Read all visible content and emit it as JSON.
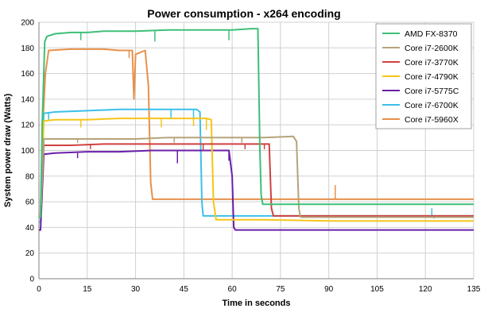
{
  "chart_data": {
    "type": "line",
    "title": "Power consumption - x264 encoding",
    "xlabel": "Time in seconds",
    "ylabel": "System power draw (Watts)",
    "xlim": [
      0,
      135
    ],
    "ylim": [
      0,
      200
    ],
    "xticks": [
      0,
      15,
      30,
      45,
      60,
      75,
      90,
      105,
      120,
      135
    ],
    "yticks": [
      0,
      20,
      40,
      60,
      80,
      100,
      120,
      140,
      160,
      180,
      200
    ],
    "grid": true,
    "legend_position": "top-right",
    "series": [
      {
        "name": "AMD FX-8370",
        "color": "#3dbf78",
        "points": [
          [
            0,
            48
          ],
          [
            0.5,
            48
          ],
          [
            1,
            120
          ],
          [
            1.8,
            185
          ],
          [
            2.5,
            189
          ],
          [
            5,
            191
          ],
          [
            10,
            192
          ],
          [
            15,
            192
          ],
          [
            20,
            193
          ],
          [
            30,
            193
          ],
          [
            40,
            194
          ],
          [
            50,
            194
          ],
          [
            60,
            194
          ],
          [
            66,
            195
          ],
          [
            68,
            195
          ],
          [
            68.6,
            100
          ],
          [
            69,
            65
          ],
          [
            69.5,
            58
          ],
          [
            80,
            58
          ],
          [
            100,
            58
          ],
          [
            120,
            58
          ],
          [
            135,
            58
          ]
        ],
        "spikes": [
          [
            13,
            186
          ],
          [
            36,
            185
          ],
          [
            59,
            186
          ],
          [
            68,
            186
          ]
        ]
      },
      {
        "name": "Core i7-2600K",
        "color": "#b5a37a",
        "points": [
          [
            0,
            48
          ],
          [
            0.5,
            48
          ],
          [
            1.5,
            109
          ],
          [
            10,
            109
          ],
          [
            20,
            109
          ],
          [
            30,
            109
          ],
          [
            40,
            110
          ],
          [
            50,
            110
          ],
          [
            60,
            110
          ],
          [
            70,
            110
          ],
          [
            79,
            111
          ],
          [
            80,
            107
          ],
          [
            80.7,
            55
          ],
          [
            81.2,
            48
          ],
          [
            100,
            48
          ],
          [
            120,
            48
          ],
          [
            135,
            48
          ]
        ],
        "spikes": [
          [
            12,
            106
          ],
          [
            42,
            106
          ],
          [
            63,
            106
          ]
        ]
      },
      {
        "name": "Core i7-3770K",
        "color": "#d04040",
        "points": [
          [
            0,
            48
          ],
          [
            0.5,
            48
          ],
          [
            1.5,
            104
          ],
          [
            10,
            104
          ],
          [
            20,
            105
          ],
          [
            30,
            105
          ],
          [
            40,
            105
          ],
          [
            50,
            105
          ],
          [
            60,
            105
          ],
          [
            70,
            105
          ],
          [
            71.5,
            105
          ],
          [
            72.2,
            55
          ],
          [
            72.8,
            49
          ],
          [
            90,
            49
          ],
          [
            110,
            49
          ],
          [
            135,
            49
          ]
        ],
        "spikes": [
          [
            16,
            101
          ],
          [
            51,
            100
          ],
          [
            64,
            101
          ],
          [
            70,
            101
          ]
        ]
      },
      {
        "name": "Core i7-4790K",
        "color": "#f5c518",
        "points": [
          [
            0,
            48
          ],
          [
            0.5,
            48
          ],
          [
            1.5,
            123
          ],
          [
            5,
            124
          ],
          [
            15,
            124
          ],
          [
            25,
            125
          ],
          [
            35,
            125
          ],
          [
            45,
            125
          ],
          [
            52,
            125
          ],
          [
            53.5,
            124
          ],
          [
            54.2,
            60
          ],
          [
            55,
            46
          ],
          [
            70,
            46
          ],
          [
            90,
            45
          ],
          [
            110,
            45
          ],
          [
            135,
            45
          ]
        ],
        "spikes": [
          [
            13,
            118
          ],
          [
            38,
            118
          ],
          [
            48,
            119
          ],
          [
            52,
            116
          ]
        ]
      },
      {
        "name": "Core i7-5775C",
        "color": "#6a1fa8",
        "points": [
          [
            0,
            38
          ],
          [
            0.5,
            38
          ],
          [
            1.5,
            97
          ],
          [
            5,
            98
          ],
          [
            15,
            99
          ],
          [
            25,
            99
          ],
          [
            35,
            100
          ],
          [
            45,
            100
          ],
          [
            55,
            100
          ],
          [
            59,
            100
          ],
          [
            60,
            80
          ],
          [
            60.5,
            40
          ],
          [
            61,
            38
          ],
          [
            80,
            38
          ],
          [
            100,
            38
          ],
          [
            120,
            38
          ],
          [
            135,
            38
          ]
        ],
        "spikes": [
          [
            12,
            94
          ],
          [
            43,
            90
          ],
          [
            59,
            92
          ]
        ]
      },
      {
        "name": "Core i7-6700K",
        "color": "#3cbfe8",
        "points": [
          [
            0,
            44
          ],
          [
            0.5,
            44
          ],
          [
            1.5,
            129
          ],
          [
            5,
            130
          ],
          [
            15,
            131
          ],
          [
            25,
            132
          ],
          [
            35,
            132
          ],
          [
            45,
            132
          ],
          [
            49,
            132
          ],
          [
            50,
            130
          ],
          [
            50.6,
            60
          ],
          [
            51,
            49
          ],
          [
            70,
            49
          ],
          [
            90,
            49
          ],
          [
            110,
            49
          ],
          [
            135,
            49
          ]
        ],
        "spikes": [
          [
            3,
            124
          ],
          [
            41,
            125
          ],
          [
            48,
            124
          ],
          [
            122,
            55
          ],
          [
            122.6,
            47
          ]
        ]
      },
      {
        "name": "Core i7-5960X",
        "color": "#e8904a",
        "points": [
          [
            0,
            50
          ],
          [
            0.5,
            50
          ],
          [
            1,
            110
          ],
          [
            2,
            160
          ],
          [
            3,
            178
          ],
          [
            10,
            179
          ],
          [
            20,
            179
          ],
          [
            25,
            178
          ],
          [
            29,
            178
          ],
          [
            29.5,
            140
          ],
          [
            30,
            175
          ],
          [
            33,
            178
          ],
          [
            34,
            150
          ],
          [
            34.7,
            75
          ],
          [
            35.3,
            62
          ],
          [
            50,
            62
          ],
          [
            70,
            62
          ],
          [
            80,
            62
          ],
          [
            100,
            62
          ],
          [
            120,
            62
          ],
          [
            135,
            62
          ]
        ],
        "spikes": [
          [
            28,
            172
          ],
          [
            92,
            73
          ],
          [
            92.5,
            62
          ]
        ]
      }
    ]
  }
}
